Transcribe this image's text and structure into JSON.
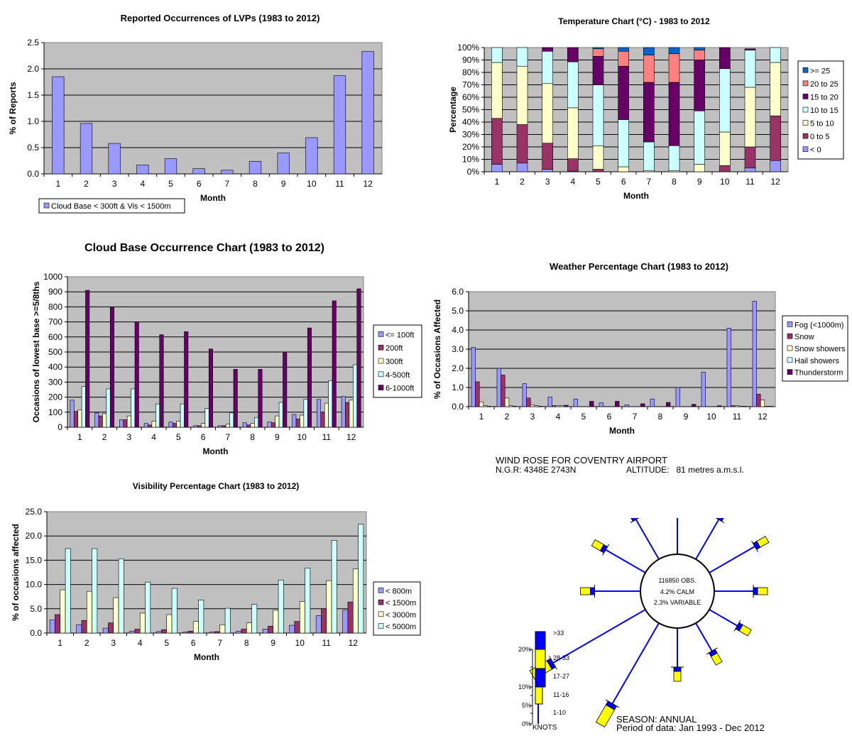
{
  "charts": [
    {
      "id": "lvp",
      "chart_data": {
        "type": "bar",
        "title": "Reported Occurrences of LVPs (1983 to 2012)",
        "xlabel": "Month",
        "ylabel": "% of Reports",
        "categories": [
          "1",
          "2",
          "3",
          "4",
          "5",
          "6",
          "7",
          "8",
          "9",
          "10",
          "11",
          "12"
        ],
        "ylim": [
          0,
          2.5
        ],
        "yticks": [
          "0.0",
          "0.5",
          "1.0",
          "1.5",
          "2.0",
          "2.5"
        ],
        "grid": true,
        "legend_position": "bottom-left",
        "series": [
          {
            "name": "Cloud Base < 300ft & Vis < 1500m",
            "color": "#9999ff",
            "values": [
              1.85,
              0.96,
              0.58,
              0.17,
              0.29,
              0.1,
              0.07,
              0.24,
              0.4,
              0.69,
              1.87,
              2.33
            ]
          }
        ]
      }
    },
    {
      "id": "temp",
      "chart_data": {
        "type": "bar",
        "stacked": true,
        "title": "Temperature Chart (°C) - 1983 to 2012",
        "xlabel": "Month",
        "ylabel": "Percentage",
        "categories": [
          "1",
          "2",
          "3",
          "4",
          "5",
          "6",
          "7",
          "8",
          "9",
          "10",
          "11",
          "12"
        ],
        "ylim": [
          0,
          100
        ],
        "yticks": [
          "0%",
          "10%",
          "20%",
          "30%",
          "40%",
          "50%",
          "60%",
          "70%",
          "80%",
          "90%",
          "100%"
        ],
        "grid": true,
        "legend_position": "right",
        "series": [
          {
            "name": "< 0",
            "color": "#9999ff",
            "values": [
              6,
              7,
              2,
              0.5,
              0,
              0,
              0,
              0,
              0,
              0,
              3,
              9
            ]
          },
          {
            "name": "0 to 5",
            "color": "#993366",
            "values": [
              37,
              31,
              21,
              10,
              2,
              0,
              0,
              0,
              0,
              5,
              17,
              36
            ]
          },
          {
            "name": "5 to 10",
            "color": "#ffffcc",
            "values": [
              45,
              47,
              48,
              41,
              19,
              4,
              1,
              1,
              6,
              27,
              48,
              43
            ]
          },
          {
            "name": "10 to 15",
            "color": "#ccffff",
            "values": [
              12,
              15,
              26,
              37,
              49,
              38,
              23,
              20,
              43,
              51,
              30,
              12
            ]
          },
          {
            "name": "15 to 20",
            "color": "#660066",
            "values": [
              0,
              0,
              3,
              11.5,
              23,
              43,
              48,
              51,
              41,
              17,
              1,
              0
            ]
          },
          {
            "name": "20 to 25",
            "color": "#ff8080",
            "values": [
              0,
              0,
              0,
              0,
              6,
              12,
              22,
              23,
              8,
              0,
              0,
              0
            ]
          },
          {
            "name": ">= 25",
            "color": "#0066cc",
            "values": [
              0,
              0,
              0,
              0,
              1,
              3,
              6,
              5,
              2,
              0,
              0,
              0
            ]
          }
        ]
      }
    },
    {
      "id": "cloud",
      "chart_data": {
        "type": "bar",
        "title": "Cloud Base Occurrence Chart (1983 to 2012)",
        "xlabel": "Month",
        "ylabel": "Occasions of lowest base >=5/8ths",
        "categories": [
          "1",
          "2",
          "3",
          "4",
          "5",
          "6",
          "7",
          "8",
          "9",
          "10",
          "11",
          "12"
        ],
        "ylim": [
          0,
          1000
        ],
        "yticks": [
          "0",
          "100",
          "200",
          "300",
          "400",
          "500",
          "600",
          "700",
          "800",
          "900",
          "1000"
        ],
        "grid": true,
        "legend_position": "right",
        "series": [
          {
            "name": "<= 100ft",
            "color": "#9999ff",
            "values": [
              180,
              95,
              50,
              25,
              35,
              10,
              10,
              30,
              35,
              85,
              185,
              205
            ]
          },
          {
            "name": "200ft",
            "color": "#993366",
            "values": [
              105,
              75,
              50,
              15,
              25,
              10,
              10,
              15,
              30,
              55,
              100,
              165
            ]
          },
          {
            "name": "300ft",
            "color": "#ffffcc",
            "values": [
              115,
              90,
              75,
              40,
              40,
              25,
              20,
              25,
              75,
              80,
              160,
              180
            ]
          },
          {
            "name": "4-500ft",
            "color": "#ccffff",
            "values": [
              270,
              255,
              255,
              155,
              155,
              125,
              95,
              65,
              165,
              185,
              310,
              415
            ]
          },
          {
            "name": "6-1000ft",
            "color": "#660066",
            "values": [
              910,
              795,
              700,
              615,
              635,
              520,
              385,
              385,
              500,
              660,
              840,
              920
            ]
          }
        ]
      }
    },
    {
      "id": "weather",
      "chart_data": {
        "type": "bar",
        "title": "Weather Percentage Chart (1983 to 2012)",
        "xlabel": "Month",
        "ylabel": "% of Occasions Affected",
        "categories": [
          "1",
          "2",
          "3",
          "4",
          "5",
          "6",
          "7",
          "8",
          "9",
          "10",
          "11",
          "12"
        ],
        "ylim": [
          0,
          6
        ],
        "yticks": [
          "0.0",
          "1.0",
          "2.0",
          "3.0",
          "4.0",
          "5.0",
          "6.0"
        ],
        "grid": true,
        "legend_position": "right",
        "series": [
          {
            "name": "Fog (<1000m)",
            "color": "#9999ff",
            "values": [
              3.1,
              2.0,
              1.2,
              0.5,
              0.4,
              0.2,
              0.1,
              0.4,
              1.0,
              1.8,
              4.1,
              5.5
            ]
          },
          {
            "name": "Snow",
            "color": "#993366",
            "values": [
              1.3,
              1.65,
              0.45,
              0.05,
              0,
              0,
              0,
              0,
              0,
              0,
              0.05,
              0.65
            ]
          },
          {
            "name": "Snow showers",
            "color": "#ffffcc",
            "values": [
              0.25,
              0.45,
              0.1,
              0.05,
              0,
              0,
              0,
              0,
              0,
              0,
              0.05,
              0.35
            ]
          },
          {
            "name": "Hail showers",
            "color": "#ccffff",
            "values": [
              0.05,
              0.05,
              0.05,
              0.05,
              0,
              0,
              0,
              0,
              0,
              0,
              0.02,
              0.02
            ]
          },
          {
            "name": "Thunderstorm",
            "color": "#660066",
            "values": [
              0.02,
              0.02,
              0.02,
              0.07,
              0.28,
              0.28,
              0.15,
              0.22,
              0.12,
              0.05,
              0.02,
              0.02
            ]
          }
        ]
      }
    },
    {
      "id": "vis",
      "chart_data": {
        "type": "bar",
        "title": "Visibility Percentage Chart (1983 to 2012)",
        "xlabel": "Month",
        "ylabel": "% of occasions affected",
        "categories": [
          "1",
          "2",
          "3",
          "4",
          "5",
          "6",
          "7",
          "8",
          "9",
          "10",
          "11",
          "12"
        ],
        "ylim": [
          0,
          25
        ],
        "yticks": [
          "0.0",
          "5.0",
          "10.0",
          "15.0",
          "20.0",
          "25.0"
        ],
        "grid": true,
        "legend_position": "right",
        "series": [
          {
            "name": "< 800m",
            "color": "#9999ff",
            "values": [
              2.7,
              1.7,
              1.0,
              0.4,
              0.3,
              0.2,
              0.2,
              0.4,
              0.8,
              1.6,
              3.6,
              4.7
            ]
          },
          {
            "name": "< 1500m",
            "color": "#993366",
            "values": [
              3.8,
              2.6,
              2.1,
              0.8,
              0.7,
              0.4,
              0.3,
              0.8,
              1.4,
              2.4,
              5.0,
              6.4
            ]
          },
          {
            "name": "< 3000m",
            "color": "#ffffcc",
            "values": [
              8.9,
              8.6,
              7.3,
              4.1,
              3.8,
              2.4,
              1.7,
              2.1,
              4.7,
              6.5,
              10.8,
              13.2
            ]
          },
          {
            "name": "< 5000m",
            "color": "#ccffff",
            "values": [
              17.4,
              17.4,
              15.3,
              10.5,
              9.2,
              6.8,
              5.1,
              5.9,
              10.9,
              13.4,
              19.1,
              22.4
            ]
          }
        ]
      }
    }
  ],
  "windrose": {
    "title": "WIND ROSE FOR COVENTRY AIRPORT",
    "ngr": "N.G.R: 4348E 2743N",
    "altitude": "ALTITUDE:   81 metres a.m.s.l.",
    "obs": "116850 OBS.",
    "calm": "4.2% CALM",
    "variable": "2.3% VARIABLE",
    "season": "SEASON: ANNUAL",
    "period": "Period of data: Jan 1993 - Dec 2012",
    "knots_label": "KNOTS",
    "scale_labels": [
      "20%",
      "10%",
      "5%",
      "0%"
    ],
    "speed_labels": [
      ">33",
      "28-33",
      "17-27",
      "11-16",
      "1-10"
    ],
    "colors": {
      "blue": "#0000ff",
      "yellow": "#ffff00",
      "line": "#0000ff"
    },
    "spokes": [
      {
        "direction": "N",
        "percent": 6
      },
      {
        "direction": "NNE",
        "percent": 7
      },
      {
        "direction": "ENE",
        "percent": 8
      },
      {
        "direction": "E",
        "percent": 6
      },
      {
        "direction": "ESE",
        "percent": 5
      },
      {
        "direction": "SSE",
        "percent": 5
      },
      {
        "direction": "S",
        "percent": 6
      },
      {
        "direction": "SSW",
        "percent": 14
      },
      {
        "direction": "WSW",
        "percent": 16
      },
      {
        "direction": "W",
        "percent": 7
      },
      {
        "direction": "WNW",
        "percent": 7
      },
      {
        "direction": "NNW",
        "percent": 7
      }
    ]
  }
}
